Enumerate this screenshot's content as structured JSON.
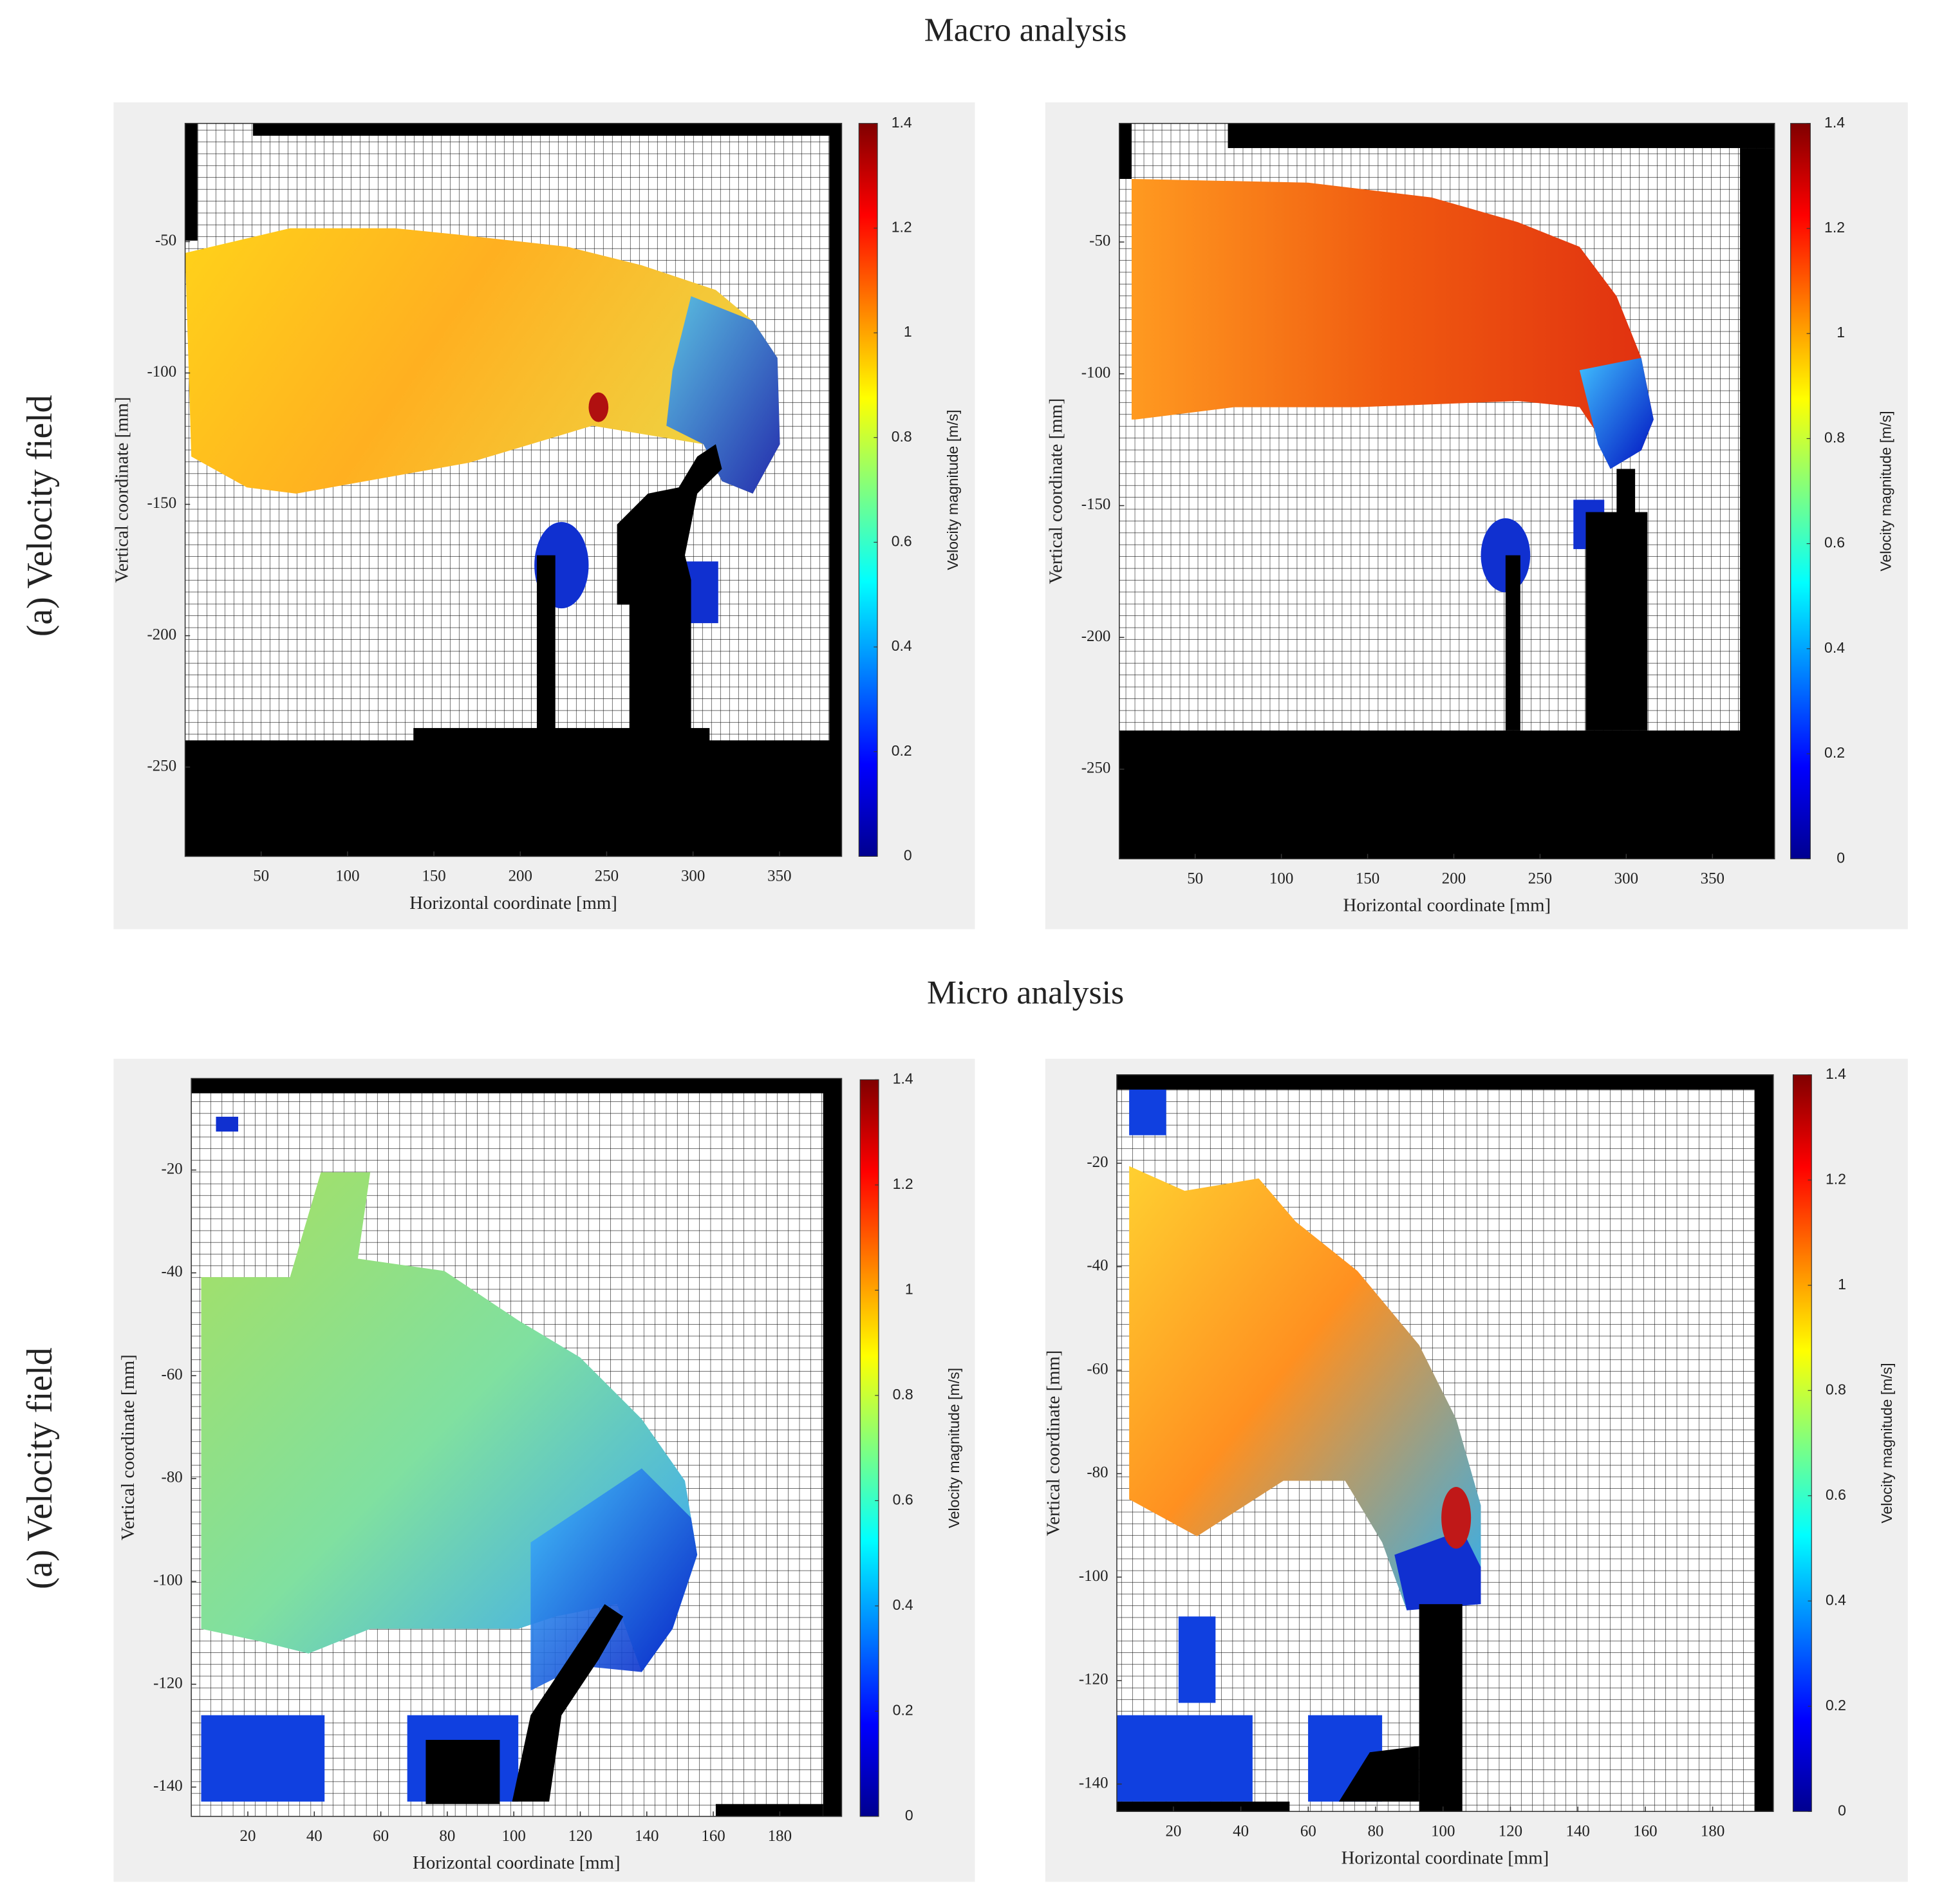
{
  "figure": {
    "sections": [
      {
        "title": "Macro analysis",
        "row_label": "(a) Velocity field"
      },
      {
        "title": "Micro analysis",
        "row_label": "(a) Velocity field"
      }
    ]
  },
  "chart_data": [
    {
      "type": "heatmap",
      "xlabel": "Horizontal coordinate [mm]",
      "ylabel": "Vertical coordinate [mm]",
      "xlim": [
        6,
        386
      ],
      "xticks": [
        50,
        100,
        150,
        200,
        250,
        300,
        350
      ],
      "ylim": [
        -284,
        -5
      ],
      "yticks": [
        -250,
        -200,
        -150,
        -100,
        -50
      ],
      "colormap": "jet",
      "colorbar": {
        "label": "Velocity magnitude [m/s]",
        "lim": [
          0,
          1.4
        ],
        "ticks": [
          0,
          0.2,
          0.4,
          0.6,
          0.8,
          1,
          1.2,
          1.4
        ]
      }
    },
    {
      "type": "heatmap",
      "xlabel": "Horizontal coordinate [mm]",
      "ylabel": "Vertical coordinate [mm]",
      "xlim": [
        6,
        386
      ],
      "xticks": [
        50,
        100,
        150,
        200,
        250,
        300,
        350
      ],
      "ylim": [
        -284,
        -5
      ],
      "yticks": [
        -250,
        -200,
        -150,
        -100,
        -50
      ],
      "colormap": "jet",
      "colorbar": {
        "label": "Velocity magnitude [m/s]",
        "lim": [
          0,
          1.4
        ],
        "ticks": [
          0,
          0.2,
          0.4,
          0.6,
          0.8,
          1,
          1.2,
          1.4
        ]
      }
    },
    {
      "type": "heatmap",
      "xlabel": "Horizontal coordinate [mm]",
      "ylabel": "Vertical coordinate [mm]",
      "xlim": [
        3,
        198.6
      ],
      "xticks": [
        20,
        40,
        60,
        80,
        100,
        120,
        140,
        160,
        180
      ],
      "ylim": [
        -145.7,
        -2.2
      ],
      "yticks": [
        -140,
        -120,
        -100,
        -80,
        -60,
        -40,
        -20
      ],
      "colormap": "jet",
      "colorbar": {
        "label": "Velocity magnitude [m/s]",
        "lim": [
          0,
          1.4
        ],
        "ticks": [
          0,
          0.2,
          0.4,
          0.6,
          0.8,
          1,
          1.2,
          1.4
        ]
      }
    },
    {
      "type": "heatmap",
      "xlabel": "Horizontal coordinate [mm]",
      "ylabel": "Vertical coordinate [mm]",
      "xlim": [
        3.2,
        198
      ],
      "xticks": [
        20,
        40,
        60,
        80,
        100,
        120,
        140,
        160,
        180
      ],
      "ylim": [
        -145.3,
        -2.9
      ],
      "yticks": [
        -140,
        -120,
        -100,
        -80,
        -60,
        -40,
        -20
      ],
      "colormap": "jet",
      "colorbar": {
        "label": "Velocity magnitude [m/s]",
        "lim": [
          0,
          1.4
        ],
        "ticks": [
          0,
          0.2,
          0.4,
          0.6,
          0.8,
          1,
          1.2,
          1.4
        ]
      }
    }
  ]
}
